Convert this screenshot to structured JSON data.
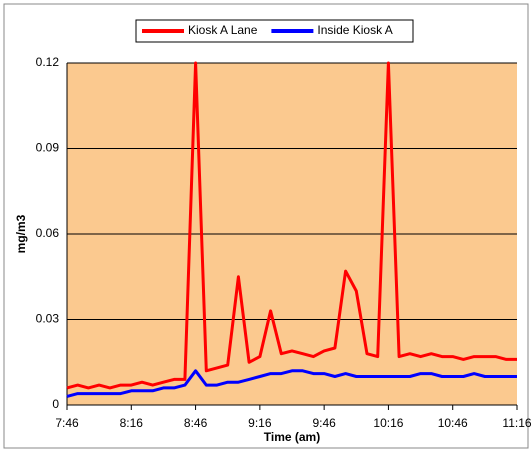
{
  "chart_data": {
    "type": "line",
    "x": [
      "7:46",
      "7:51",
      "7:56",
      "8:01",
      "8:06",
      "8:11",
      "8:16",
      "8:21",
      "8:26",
      "8:31",
      "8:36",
      "8:41",
      "8:46",
      "8:51",
      "8:56",
      "9:01",
      "9:06",
      "9:11",
      "9:16",
      "9:21",
      "9:26",
      "9:31",
      "9:36",
      "9:41",
      "9:46",
      "9:51",
      "9:56",
      "10:01",
      "10:06",
      "10:11",
      "10:16",
      "10:21",
      "10:26",
      "10:31",
      "10:36",
      "10:41",
      "10:46",
      "10:51",
      "10:56",
      "11:01",
      "11:06",
      "11:11",
      "11:16"
    ],
    "series": [
      {
        "name": "Kiosk A Lane",
        "color": "#ff0000",
        "values": [
          0.006,
          0.007,
          0.006,
          0.007,
          0.006,
          0.007,
          0.007,
          0.008,
          0.007,
          0.008,
          0.009,
          0.009,
          0.12,
          0.012,
          0.013,
          0.014,
          0.045,
          0.015,
          0.017,
          0.033,
          0.018,
          0.019,
          0.018,
          0.017,
          0.019,
          0.02,
          0.047,
          0.04,
          0.018,
          0.017,
          0.12,
          0.017,
          0.018,
          0.017,
          0.018,
          0.017,
          0.017,
          0.016,
          0.017,
          0.017,
          0.017,
          0.016,
          0.016
        ]
      },
      {
        "name": "Inside Kiosk A",
        "color": "#0000ff",
        "values": [
          0.003,
          0.004,
          0.004,
          0.004,
          0.004,
          0.004,
          0.005,
          0.005,
          0.005,
          0.006,
          0.006,
          0.007,
          0.012,
          0.007,
          0.007,
          0.008,
          0.008,
          0.009,
          0.01,
          0.011,
          0.011,
          0.012,
          0.012,
          0.011,
          0.011,
          0.01,
          0.011,
          0.01,
          0.01,
          0.01,
          0.01,
          0.01,
          0.01,
          0.011,
          0.011,
          0.01,
          0.01,
          0.01,
          0.011,
          0.01,
          0.01,
          0.01,
          0.01
        ]
      }
    ],
    "xticks": [
      "7:46",
      "8:16",
      "8:46",
      "9:16",
      "9:46",
      "10:16",
      "10:46",
      "11:16"
    ],
    "ylim": [
      0,
      0.12
    ],
    "yticks": [
      0,
      0.03,
      0.06,
      0.09,
      0.12
    ],
    "ylabel": "mg/m3",
    "xlabel": "Time (am)",
    "grid": true,
    "background": "#fbc98f"
  }
}
